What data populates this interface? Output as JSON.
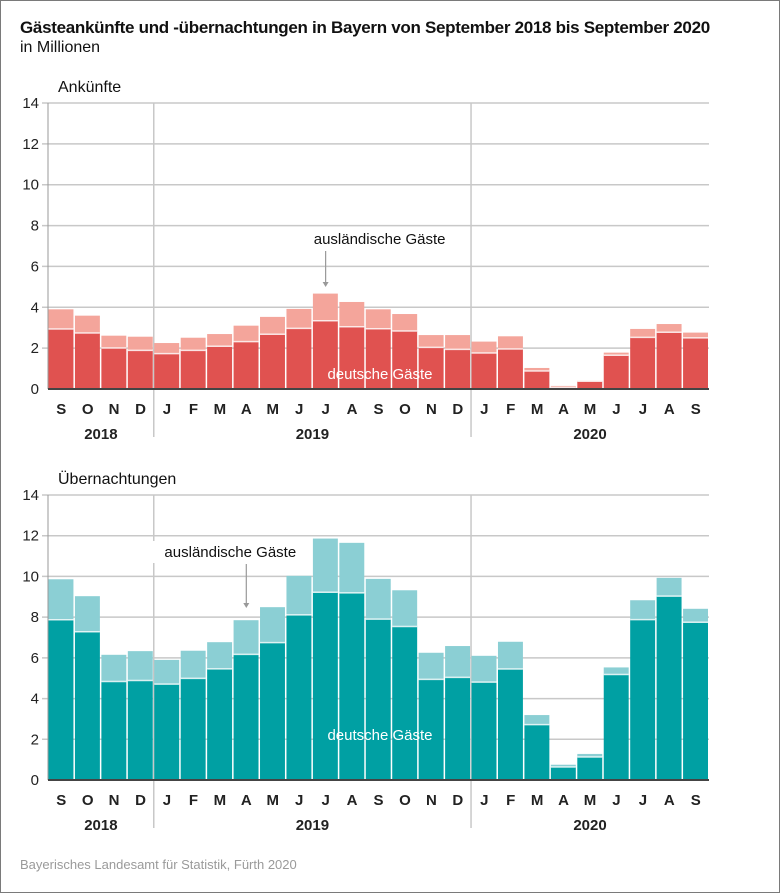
{
  "title": "Gästeankünfte und -übernachtungen in Bayern von September 2018 bis September 2020",
  "subtitle": "in Millionen",
  "source": "Bayerisches Landesamt für Statistik, Fürth 2020",
  "colors": {
    "arrivals_german": "#e05250",
    "arrivals_foreign": "#f4a59b",
    "nights_german": "#00a0a3",
    "nights_foreign": "#8bcfd4",
    "grid": "#c8c8c8",
    "axis": "#444444"
  },
  "chart_data": [
    {
      "type": "bar",
      "stacked": true,
      "title": "Ankünfte",
      "ylabel": "",
      "xlabel": "",
      "ylim": [
        0,
        14
      ],
      "yticks": [
        0,
        2,
        4,
        6,
        8,
        10,
        12,
        14
      ],
      "grid": true,
      "categories": [
        "S",
        "O",
        "N",
        "D",
        "J",
        "F",
        "M",
        "A",
        "M",
        "J",
        "J",
        "A",
        "S",
        "O",
        "N",
        "D",
        "J",
        "F",
        "M",
        "A",
        "M",
        "J",
        "J",
        "A",
        "S"
      ],
      "year_groups": [
        {
          "label": "2018",
          "count": 4
        },
        {
          "label": "2019",
          "count": 12
        },
        {
          "label": "2020",
          "count": 9
        }
      ],
      "series": [
        {
          "name": "deutsche Gäste",
          "values": [
            2.94,
            2.74,
            2.01,
            1.89,
            1.73,
            1.89,
            2.09,
            2.32,
            2.68,
            2.97,
            3.34,
            3.05,
            2.95,
            2.84,
            2.04,
            1.94,
            1.76,
            1.96,
            0.88,
            0.08,
            0.38,
            1.65,
            2.53,
            2.78,
            2.5
          ]
        },
        {
          "name": "ausländische Gäste",
          "values": [
            0.96,
            0.85,
            0.6,
            0.67,
            0.52,
            0.62,
            0.6,
            0.78,
            0.85,
            0.95,
            1.33,
            1.21,
            0.95,
            0.83,
            0.6,
            0.7,
            0.56,
            0.62,
            0.15,
            0.07,
            0.03,
            0.13,
            0.41,
            0.4,
            0.26
          ]
        }
      ],
      "totals": [
        3.9,
        3.59,
        2.61,
        2.56,
        2.25,
        2.51,
        2.69,
        3.1,
        3.53,
        3.92,
        4.67,
        4.26,
        3.9,
        3.67,
        2.64,
        2.64,
        2.32,
        2.58,
        1.03,
        0.15,
        0.41,
        1.78,
        2.94,
        3.18,
        2.76
      ],
      "annotations": [
        {
          "text": "ausländische Gäste",
          "target_index": 10,
          "series": "ausländische Gäste"
        },
        {
          "text": "deutsche Gäste",
          "series": "deutsche Gäste"
        }
      ]
    },
    {
      "type": "bar",
      "stacked": true,
      "title": "Übernachtungen",
      "ylabel": "",
      "xlabel": "",
      "ylim": [
        0,
        14
      ],
      "yticks": [
        0,
        2,
        4,
        6,
        8,
        10,
        12,
        14
      ],
      "grid": true,
      "categories": [
        "S",
        "O",
        "N",
        "D",
        "J",
        "F",
        "M",
        "A",
        "M",
        "J",
        "J",
        "A",
        "S",
        "O",
        "N",
        "D",
        "J",
        "F",
        "M",
        "A",
        "M",
        "J",
        "J",
        "A",
        "S"
      ],
      "year_groups": [
        {
          "label": "2018",
          "count": 4
        },
        {
          "label": "2019",
          "count": 12
        },
        {
          "label": "2020",
          "count": 9
        }
      ],
      "series": [
        {
          "name": "deutsche Gäste",
          "values": [
            7.87,
            7.28,
            4.84,
            4.89,
            4.71,
            4.99,
            5.46,
            6.17,
            6.75,
            8.11,
            9.22,
            9.19,
            7.9,
            7.54,
            4.94,
            5.04,
            4.81,
            5.45,
            2.72,
            0.64,
            1.13,
            5.18,
            7.88,
            9.03,
            7.75
          ]
        },
        {
          "name": "ausländische Gäste",
          "values": [
            1.99,
            1.75,
            1.31,
            1.44,
            1.19,
            1.36,
            1.31,
            1.68,
            1.74,
            1.92,
            2.64,
            2.46,
            1.98,
            1.78,
            1.31,
            1.54,
            1.29,
            1.34,
            0.47,
            0.11,
            0.15,
            0.35,
            0.95,
            0.9,
            0.66
          ]
        }
      ],
      "totals": [
        9.86,
        9.03,
        6.15,
        6.33,
        5.9,
        6.35,
        6.77,
        7.85,
        8.49,
        10.03,
        11.86,
        11.65,
        9.88,
        9.32,
        6.25,
        6.58,
        6.1,
        6.79,
        3.19,
        0.75,
        1.28,
        5.53,
        8.83,
        9.93,
        8.41
      ],
      "annotations": [
        {
          "text": "ausländische Gäste",
          "target_index": 7,
          "series": "ausländische Gäste"
        },
        {
          "text": "deutsche Gäste",
          "series": "deutsche Gäste"
        }
      ]
    }
  ]
}
